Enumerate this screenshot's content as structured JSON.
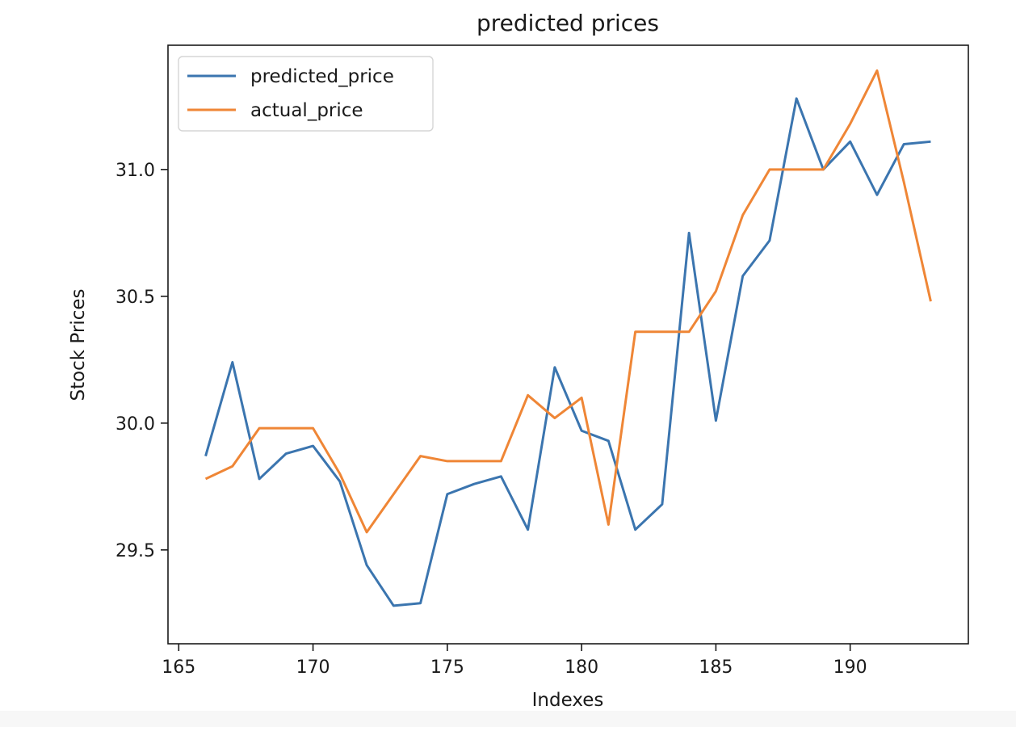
{
  "chart_data": {
    "type": "line",
    "title": "predicted prices",
    "xlabel": "Indexes",
    "ylabel": "Stock Prices",
    "xlim": [
      164.6,
      194.4
    ],
    "ylim": [
      29.13,
      31.49
    ],
    "xticks": [
      165,
      170,
      175,
      180,
      185,
      190
    ],
    "yticks": [
      29.5,
      30.0,
      30.5,
      31.0
    ],
    "xtick_labels": [
      "165",
      "170",
      "175",
      "180",
      "185",
      "190"
    ],
    "ytick_labels": [
      "29.5",
      "30.0",
      "30.5",
      "31.0"
    ],
    "x": [
      166,
      167,
      168,
      169,
      170,
      171,
      172,
      173,
      174,
      175,
      176,
      177,
      178,
      179,
      180,
      181,
      182,
      183,
      184,
      185,
      186,
      187,
      188,
      189,
      190,
      191,
      192,
      193
    ],
    "series": [
      {
        "name": "predicted_price",
        "color": "#3b75af",
        "values": [
          29.87,
          30.24,
          29.78,
          29.88,
          29.91,
          29.77,
          29.44,
          29.28,
          29.29,
          29.72,
          29.76,
          29.79,
          29.58,
          30.22,
          29.97,
          29.93,
          29.58,
          29.68,
          30.75,
          30.01,
          30.58,
          30.72,
          31.28,
          31.0,
          31.11,
          30.9,
          31.1,
          31.11
        ]
      },
      {
        "name": "actual_price",
        "color": "#ef8636",
        "values": [
          29.78,
          29.83,
          29.98,
          29.98,
          29.98,
          29.8,
          29.57,
          29.72,
          29.87,
          29.85,
          29.85,
          29.85,
          30.11,
          30.02,
          30.1,
          29.6,
          30.36,
          30.36,
          30.36,
          30.52,
          30.82,
          31.0,
          31.0,
          31.0,
          31.18,
          31.39,
          30.95,
          30.48
        ]
      }
    ],
    "legend": "top-left",
    "grid": false
  }
}
